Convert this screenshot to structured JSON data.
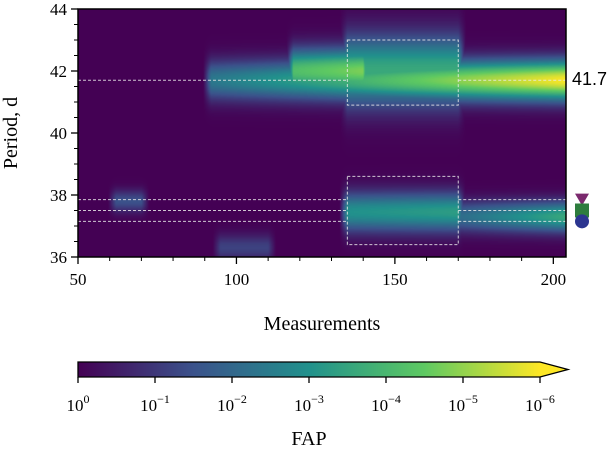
{
  "chart_data": {
    "type": "heatmap",
    "xlabel": "Measurements",
    "ylabel": "Period, d",
    "xlim": [
      50,
      204
    ],
    "ylim": [
      36,
      44
    ],
    "xticks": [
      50,
      100,
      150,
      200
    ],
    "xtick_labels": [
      "50",
      "100",
      "150",
      "200"
    ],
    "yticks": [
      36,
      38,
      40,
      42,
      44
    ],
    "ytick_labels": [
      "36",
      "38",
      "40",
      "42",
      "44"
    ],
    "colorscale": [
      "#440154",
      "#3b528b",
      "#21918c",
      "#5ec962",
      "#fde725"
    ],
    "background_color": "#440154",
    "grid": false,
    "signal_blobs": [
      {
        "x0": 92,
        "x1": 204,
        "y": 41.7,
        "sigma": 0.45,
        "peak_start": 0.4,
        "peak_end": 1.0
      },
      {
        "x0": 118,
        "x1": 140,
        "y": 42.0,
        "sigma": 0.5,
        "peak_start": 0.7,
        "peak_end": 0.8
      },
      {
        "x0": 135,
        "x1": 170,
        "y": 42.0,
        "sigma": 0.8,
        "peak_start": 0.6,
        "peak_end": 0.6
      },
      {
        "x0": 62,
        "x1": 70,
        "y": 37.8,
        "sigma": 0.25,
        "peak_start": 0.25,
        "peak_end": 0.25
      },
      {
        "x0": 135,
        "x1": 170,
        "y": 37.45,
        "sigma": 0.45,
        "peak_start": 0.5,
        "peak_end": 0.55
      },
      {
        "x0": 170,
        "x1": 204,
        "y": 37.3,
        "sigma": 0.35,
        "peak_start": 0.35,
        "peak_end": 0.6
      },
      {
        "x0": 95,
        "x1": 110,
        "y": 36.3,
        "sigma": 0.3,
        "peak_start": 0.2,
        "peak_end": 0.2
      }
    ],
    "reference_lines": [
      41.7,
      37.85,
      37.5,
      37.15
    ],
    "boxes": [
      {
        "x0": 135,
        "x1": 170,
        "y0": 40.9,
        "y1": 43.0
      },
      {
        "x0": 135,
        "x1": 170,
        "y0": 36.4,
        "y1": 38.6
      }
    ],
    "annotation": {
      "text": "41.7",
      "y": 41.7
    },
    "side_markers": [
      {
        "shape": "triangle-down",
        "y": 37.85,
        "color": "#7b2a6e"
      },
      {
        "shape": "square",
        "y": 37.5,
        "color": "#2e7d3e"
      },
      {
        "shape": "circle",
        "y": 37.15,
        "color": "#2c3590"
      }
    ],
    "colorbar": {
      "label": "FAP",
      "extend": "max",
      "ticks": [
        {
          "base": "10",
          "exp": "0"
        },
        {
          "base": "10",
          "exp": "−1"
        },
        {
          "base": "10",
          "exp": "−2"
        },
        {
          "base": "10",
          "exp": "−3"
        },
        {
          "base": "10",
          "exp": "−4"
        },
        {
          "base": "10",
          "exp": "−5"
        },
        {
          "base": "10",
          "exp": "−6"
        }
      ]
    }
  }
}
